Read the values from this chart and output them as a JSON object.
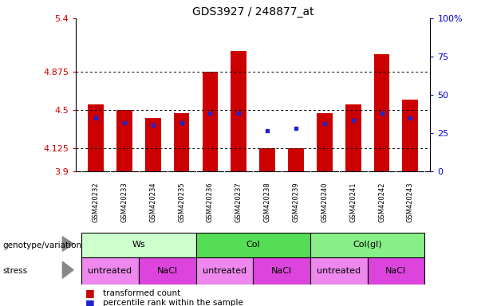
{
  "title": "GDS3927 / 248877_at",
  "samples": [
    "GSM420232",
    "GSM420233",
    "GSM420234",
    "GSM420235",
    "GSM420236",
    "GSM420237",
    "GSM420238",
    "GSM420239",
    "GSM420240",
    "GSM420241",
    "GSM420242",
    "GSM420243"
  ],
  "bar_values": [
    4.56,
    4.5,
    4.42,
    4.47,
    4.875,
    5.08,
    4.13,
    4.13,
    4.47,
    4.56,
    5.05,
    4.6
  ],
  "dot_values": [
    4.42,
    4.38,
    4.35,
    4.38,
    4.47,
    4.47,
    4.3,
    4.32,
    4.37,
    4.4,
    4.47,
    4.42
  ],
  "ylim_left": [
    3.9,
    5.4
  ],
  "yticks_left": [
    3.9,
    4.125,
    4.5,
    4.875,
    5.4
  ],
  "ytick_labels_left": [
    "3.9",
    "4.125",
    "4.5",
    "4.875",
    "5.4"
  ],
  "ylim_right": [
    0,
    100
  ],
  "yticks_right": [
    0,
    25,
    50,
    75,
    100
  ],
  "ytick_labels_right": [
    "0",
    "25",
    "50",
    "75",
    "100%"
  ],
  "hlines": [
    4.125,
    4.5,
    4.875
  ],
  "bar_color": "#cc0000",
  "dot_color": "#2222cc",
  "bar_bottom": 3.9,
  "genotype_groups": [
    {
      "label": "Ws",
      "start": 0,
      "end": 3,
      "color": "#ccffcc"
    },
    {
      "label": "Col",
      "start": 4,
      "end": 7,
      "color": "#55dd55"
    },
    {
      "label": "Col(gl)",
      "start": 8,
      "end": 11,
      "color": "#88ee88"
    }
  ],
  "stress_groups": [
    {
      "label": "untreated",
      "start": 0,
      "end": 1,
      "color": "#ee88ee"
    },
    {
      "label": "NaCl",
      "start": 2,
      "end": 3,
      "color": "#dd44dd"
    },
    {
      "label": "untreated",
      "start": 4,
      "end": 5,
      "color": "#ee88ee"
    },
    {
      "label": "NaCl",
      "start": 6,
      "end": 7,
      "color": "#dd44dd"
    },
    {
      "label": "untreated",
      "start": 8,
      "end": 9,
      "color": "#ee88ee"
    },
    {
      "label": "NaCl",
      "start": 10,
      "end": 11,
      "color": "#dd44dd"
    }
  ],
  "genotype_label": "genotype/variation",
  "stress_label": "stress",
  "legend_bar_label": "transformed count",
  "legend_dot_label": "percentile rank within the sample",
  "tick_color_left": "#cc0000",
  "tick_color_right": "#0000cc",
  "bg_color": "#ffffff",
  "sample_bg_color": "#cccccc"
}
